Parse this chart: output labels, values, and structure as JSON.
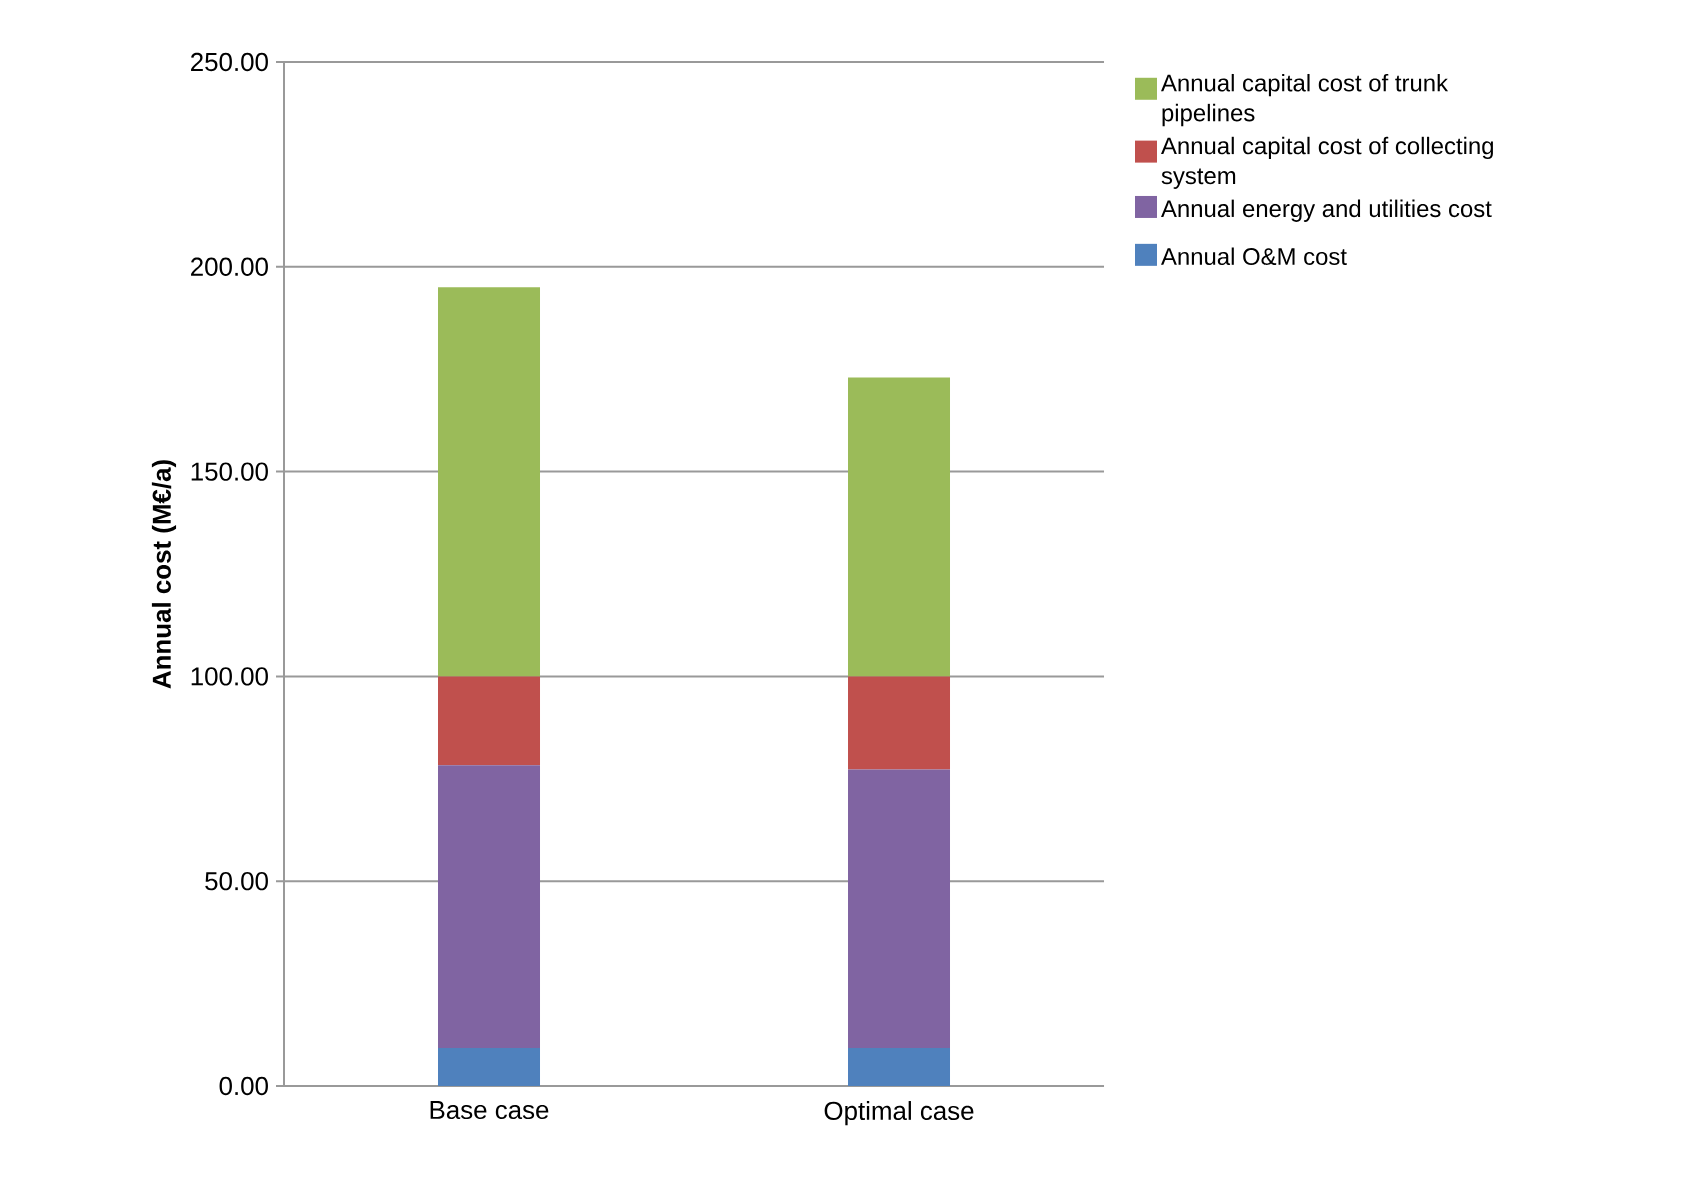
{
  "chart_data": {
    "type": "bar",
    "stacked": true,
    "ylabel": "Annual cost  (M€/a)",
    "categories": [
      "Base case",
      "Optimal case"
    ],
    "series": [
      {
        "name": "Annual O&M cost",
        "color": "#4f81bd",
        "values": [
          9.3,
          9.3
        ]
      },
      {
        "name": "Annual energy and utilities cost",
        "color": "#8064a2",
        "values": [
          69.0,
          68.0
        ]
      },
      {
        "name": "Annual capital cost of collecting system",
        "color": "#c0504d",
        "values": [
          21.7,
          22.7
        ]
      },
      {
        "name": "Annual capital cost of trunk pipelines",
        "color": "#9bbb59",
        "values": [
          95.0,
          73.0
        ]
      }
    ],
    "ylim": [
      0,
      250
    ],
    "yticks": [
      {
        "value": 0,
        "label": "0.00"
      },
      {
        "value": 50,
        "label": "50.00"
      },
      {
        "value": 100,
        "label": "100.00"
      },
      {
        "value": 150,
        "label": "150.00"
      },
      {
        "value": 200,
        "label": "200.00"
      },
      {
        "value": 250,
        "label": "250.00"
      }
    ],
    "grid": "y",
    "legend": "right"
  }
}
